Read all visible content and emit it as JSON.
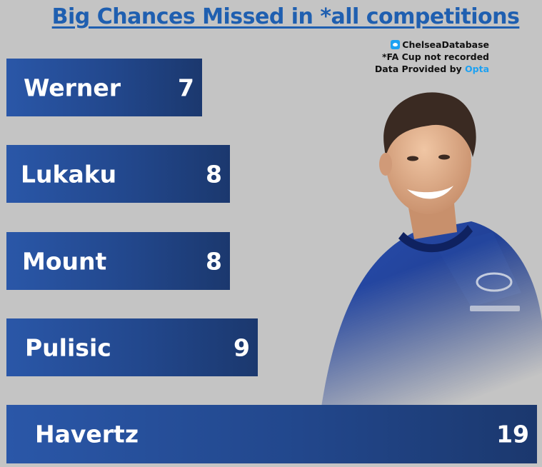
{
  "chart_data": {
    "type": "bar",
    "orientation": "horizontal",
    "title": "Big Chances Missed in *all competitions",
    "categories": [
      "Werner",
      "Lukaku",
      "Mount",
      "Pulisic",
      "Havertz"
    ],
    "values": [
      7,
      8,
      8,
      9,
      19
    ],
    "xlabel": "",
    "ylabel": "",
    "grid": false,
    "colors": {
      "bar_start": "#2a57a8",
      "bar_end": "#1b386e",
      "text": "#ffffff",
      "title": "#1f5fb0"
    }
  },
  "credits": {
    "twitter_icon": "twitter-icon",
    "handle": "ChelseaDatabase",
    "note": "*FA Cup not recorded",
    "provider_prefix": "Data Provided by ",
    "provider_name": "Opta"
  },
  "image": {
    "subject": "player-photo"
  }
}
